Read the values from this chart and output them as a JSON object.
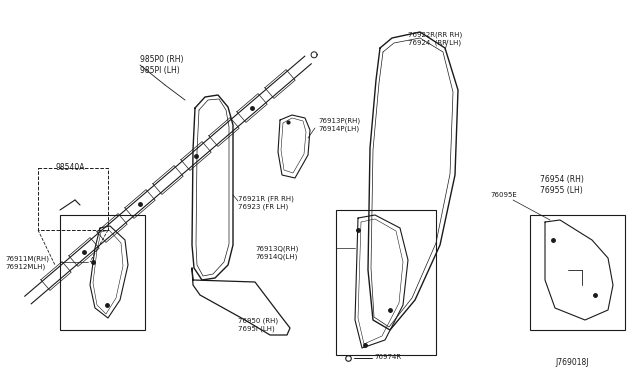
{
  "bg_color": "#ffffff",
  "line_color": "#1a1a1a",
  "diagram_id": "J769018J",
  "labels": {
    "985P0": "985P0 (RH)\n985PI (LH)",
    "98540A": "98540A",
    "76921R": "76921R (FR RH)\n76923 (FR LH)",
    "76913P": "76913P(RH)\n76914P(LH)",
    "76922R": "76922R(RR RH)\n76924  (RR LH)",
    "76911M": "76911M(RH)\n76912MLH)",
    "76913Q": "76913Q(RH)\n76914Q(LH)",
    "76950": "76950 (RH)\n7695I (LH)",
    "76954": "76954 (RH)\n76955 (LH)",
    "76095E": "76095E",
    "76974R": "76974R"
  }
}
